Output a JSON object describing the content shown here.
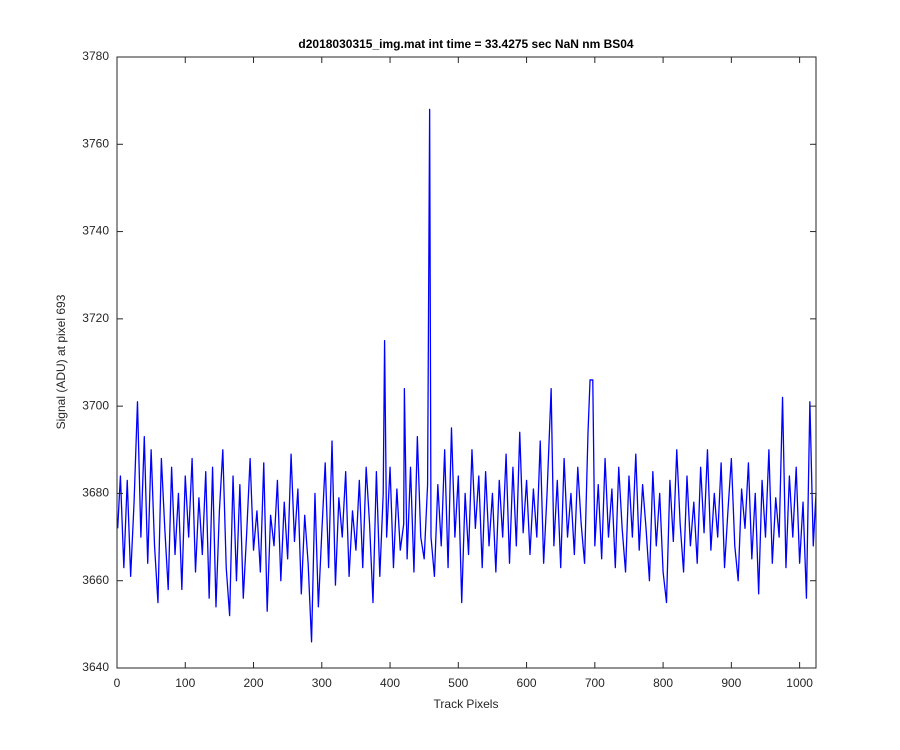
{
  "chart_data": {
    "type": "line",
    "title": "d2018030315_img.mat int time = 33.4275 sec  NaN nm BS04",
    "x_label": "Track Pixels",
    "y_label": "Signal (ADU) at pixel 693",
    "xlim": [
      0,
      1024
    ],
    "ylim": [
      3640,
      3780
    ],
    "xticks": [
      0,
      100,
      200,
      300,
      400,
      500,
      600,
      700,
      800,
      900,
      1000
    ],
    "yticks": [
      3640,
      3660,
      3680,
      3700,
      3720,
      3740,
      3760,
      3780
    ],
    "series": [
      {
        "color": "#0000ff",
        "x": [
          1,
          5,
          10,
          15,
          20,
          25,
          30,
          35,
          40,
          45,
          50,
          55,
          60,
          65,
          70,
          75,
          80,
          85,
          90,
          95,
          100,
          105,
          110,
          115,
          120,
          125,
          130,
          135,
          140,
          145,
          150,
          155,
          160,
          165,
          170,
          175,
          180,
          185,
          190,
          195,
          200,
          205,
          210,
          215,
          220,
          225,
          230,
          235,
          240,
          245,
          250,
          255,
          260,
          265,
          270,
          275,
          280,
          285,
          290,
          295,
          300,
          305,
          310,
          315,
          320,
          325,
          330,
          335,
          340,
          345,
          350,
          355,
          360,
          365,
          370,
          375,
          380,
          385,
          390,
          392,
          395,
          400,
          405,
          410,
          415,
          420,
          421,
          425,
          430,
          435,
          440,
          445,
          450,
          455,
          458,
          460,
          465,
          470,
          475,
          480,
          485,
          490,
          495,
          500,
          505,
          510,
          515,
          520,
          525,
          530,
          535,
          540,
          545,
          550,
          555,
          560,
          565,
          570,
          575,
          580,
          585,
          590,
          595,
          600,
          605,
          610,
          615,
          620,
          625,
          630,
          636,
          640,
          645,
          650,
          655,
          660,
          665,
          670,
          675,
          680,
          685,
          690,
          693,
          697,
          700,
          705,
          710,
          715,
          720,
          725,
          730,
          735,
          740,
          745,
          750,
          755,
          760,
          765,
          770,
          775,
          780,
          785,
          790,
          795,
          800,
          805,
          810,
          815,
          820,
          825,
          830,
          835,
          840,
          845,
          850,
          855,
          860,
          865,
          870,
          875,
          880,
          885,
          890,
          895,
          900,
          905,
          910,
          915,
          920,
          925,
          930,
          935,
          940,
          945,
          950,
          955,
          960,
          965,
          970,
          975,
          980,
          985,
          990,
          995,
          1000,
          1005,
          1010,
          1015,
          1020,
          1024
        ],
        "values": [
          3672,
          3684,
          3663,
          3683,
          3661,
          3678,
          3701,
          3670,
          3693,
          3664,
          3690,
          3668,
          3655,
          3688,
          3672,
          3658,
          3686,
          3666,
          3680,
          3658,
          3684,
          3670,
          3688,
          3662,
          3679,
          3666,
          3685,
          3656,
          3686,
          3654,
          3676,
          3690,
          3663,
          3652,
          3684,
          3660,
          3682,
          3656,
          3671,
          3688,
          3667,
          3676,
          3662,
          3687,
          3653,
          3675,
          3668,
          3683,
          3660,
          3678,
          3665,
          3689,
          3669,
          3681,
          3657,
          3675,
          3664,
          3646,
          3680,
          3654,
          3671,
          3687,
          3663,
          3692,
          3659,
          3679,
          3670,
          3685,
          3661,
          3676,
          3667,
          3683,
          3663,
          3686,
          3673,
          3655,
          3685,
          3661,
          3680,
          3715,
          3670,
          3686,
          3663,
          3681,
          3667,
          3673,
          3704,
          3665,
          3686,
          3662,
          3693,
          3670,
          3665,
          3682,
          3768,
          3670,
          3661,
          3682,
          3668,
          3690,
          3663,
          3695,
          3670,
          3684,
          3655,
          3680,
          3666,
          3690,
          3672,
          3684,
          3663,
          3685,
          3668,
          3680,
          3662,
          3683,
          3670,
          3689,
          3664,
          3686,
          3668,
          3694,
          3671,
          3683,
          3666,
          3681,
          3670,
          3692,
          3664,
          3680,
          3704,
          3668,
          3683,
          3663,
          3688,
          3670,
          3680,
          3666,
          3686,
          3673,
          3664,
          3694,
          3706,
          3706,
          3668,
          3682,
          3665,
          3688,
          3670,
          3681,
          3663,
          3686,
          3672,
          3662,
          3684,
          3670,
          3689,
          3667,
          3682,
          3672,
          3660,
          3685,
          3668,
          3680,
          3662,
          3655,
          3683,
          3669,
          3690,
          3673,
          3662,
          3684,
          3668,
          3678,
          3664,
          3686,
          3671,
          3690,
          3667,
          3680,
          3670,
          3687,
          3663,
          3676,
          3688,
          3668,
          3660,
          3681,
          3672,
          3687,
          3665,
          3680,
          3657,
          3683,
          3670,
          3690,
          3664,
          3679,
          3670,
          3702,
          3663,
          3684,
          3670,
          3686,
          3664,
          3678,
          3656,
          3701,
          3668,
          3680
        ]
      }
    ]
  }
}
